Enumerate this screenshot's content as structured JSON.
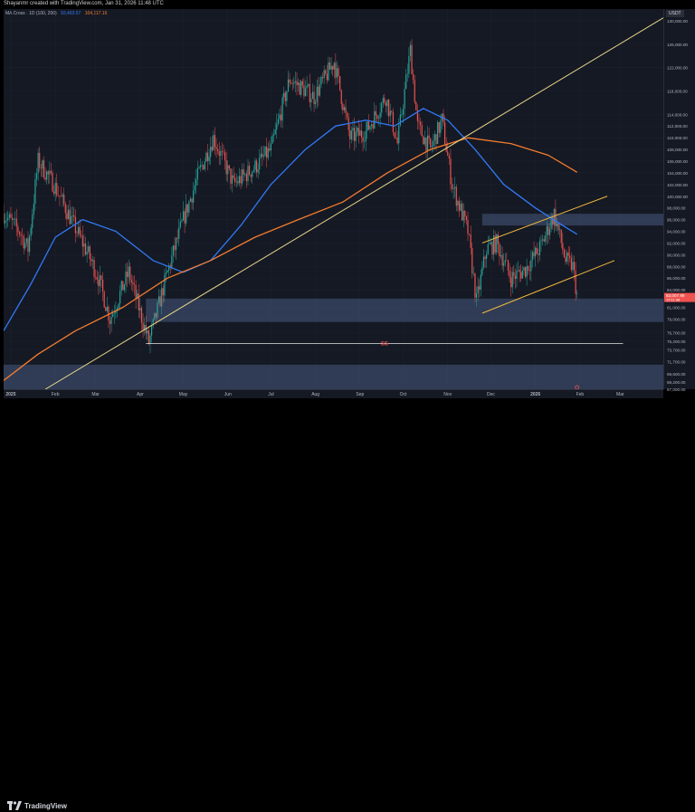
{
  "header": {
    "credit": "Shayanmr created with TradingView.com, Jan 31, 2026 11:48 UTC"
  },
  "indicator": {
    "name": "MA Cross · 1D (100, 200)",
    "value_fast": "93,493.57",
    "value_slow": "104,117.16"
  },
  "currency_label": "USDT",
  "footer": {
    "logo_text": "TradingView"
  },
  "colors": {
    "background": "#151924",
    "ma_fast": "#3179f5",
    "ma_slow": "#f57c2e",
    "trendline": "#e8d789",
    "channel": "#f2b93b",
    "zone": "#47597d",
    "candle_up": "#26a69a",
    "candle_down": "#ef5350",
    "price_label": "#ef5350"
  },
  "chart_data": {
    "type": "candlestick",
    "symbol_quote": "USDT",
    "ylim": [
      67000,
      132000
    ],
    "y_ticks": [
      {
        "value": 130000,
        "label": "130,000.00"
      },
      {
        "value": 126000,
        "label": "126,000.00"
      },
      {
        "value": 122000,
        "label": "122,000.00"
      },
      {
        "value": 118000,
        "label": "118,000.00"
      },
      {
        "value": 114000,
        "label": "114,000.00"
      },
      {
        "value": 112000,
        "label": "112,000.00"
      },
      {
        "value": 110000,
        "label": "110,000.00"
      },
      {
        "value": 108000,
        "label": "108,000.00"
      },
      {
        "value": 106000,
        "label": "106,000.00"
      },
      {
        "value": 104000,
        "label": "104,000.00"
      },
      {
        "value": 102000,
        "label": "102,000.00"
      },
      {
        "value": 100000,
        "label": "100,000.00"
      },
      {
        "value": 98000,
        "label": "98,000.00"
      },
      {
        "value": 96000,
        "label": "96,000.00"
      },
      {
        "value": 94000,
        "label": "94,000.00"
      },
      {
        "value": 92000,
        "label": "92,000.00"
      },
      {
        "value": 90000,
        "label": "90,000.00"
      },
      {
        "value": 88000,
        "label": "88,000.00"
      },
      {
        "value": 86000,
        "label": "86,000.00"
      },
      {
        "value": 84000,
        "label": "84,000.00"
      },
      {
        "value": 81000,
        "label": "81,000.00"
      },
      {
        "value": 79000,
        "label": "79,000.00"
      },
      {
        "value": 76700,
        "label": "76,700.00"
      },
      {
        "value": 75200,
        "label": "75,200.00"
      },
      {
        "value": 73700,
        "label": "73,700.00"
      },
      {
        "value": 71700,
        "label": "71,700.00"
      },
      {
        "value": 69600,
        "label": "69,600.00"
      },
      {
        "value": 68200,
        "label": "68,200.00"
      },
      {
        "value": 67000,
        "label": "67,000.00"
      }
    ],
    "x_labels": [
      {
        "label": "2025",
        "date": "2025-01-01"
      },
      {
        "label": "Feb",
        "date": "2025-02-01"
      },
      {
        "label": "Mar",
        "date": "2025-03-01"
      },
      {
        "label": "Apr",
        "date": "2025-04-01"
      },
      {
        "label": "May",
        "date": "2025-05-01"
      },
      {
        "label": "Jun",
        "date": "2025-06-01"
      },
      {
        "label": "Jul",
        "date": "2025-07-01"
      },
      {
        "label": "Aug",
        "date": "2025-08-01"
      },
      {
        "label": "Sep",
        "date": "2025-09-01"
      },
      {
        "label": "Oct",
        "date": "2025-10-01"
      },
      {
        "label": "Nov",
        "date": "2025-11-01"
      },
      {
        "label": "Dec",
        "date": "2025-12-01"
      },
      {
        "label": "2026",
        "date": "2026-01-01"
      },
      {
        "label": "Feb",
        "date": "2026-02-01"
      },
      {
        "label": "Mar",
        "date": "2026-03-01"
      }
    ],
    "xlim": [
      "2024-12-27",
      "2026-03-31"
    ],
    "price_path": [
      {
        "date": "2024-12-27",
        "price": 97000
      },
      {
        "date": "2025-01-07",
        "price": 94000
      },
      {
        "date": "2025-01-13",
        "price": 91000
      },
      {
        "date": "2025-01-20",
        "price": 106000
      },
      {
        "date": "2025-01-31",
        "price": 102000
      },
      {
        "date": "2025-02-10",
        "price": 97000
      },
      {
        "date": "2025-02-24",
        "price": 90000
      },
      {
        "date": "2025-03-03",
        "price": 86000
      },
      {
        "date": "2025-03-11",
        "price": 79000
      },
      {
        "date": "2025-03-24",
        "price": 87000
      },
      {
        "date": "2025-04-07",
        "price": 75000
      },
      {
        "date": "2025-04-20",
        "price": 87000
      },
      {
        "date": "2025-05-01",
        "price": 96000
      },
      {
        "date": "2025-05-12",
        "price": 104000
      },
      {
        "date": "2025-05-22",
        "price": 110000
      },
      {
        "date": "2025-06-05",
        "price": 102000
      },
      {
        "date": "2025-06-20",
        "price": 105000
      },
      {
        "date": "2025-07-01",
        "price": 108000
      },
      {
        "date": "2025-07-14",
        "price": 120000
      },
      {
        "date": "2025-07-31",
        "price": 117000
      },
      {
        "date": "2025-08-14",
        "price": 123000
      },
      {
        "date": "2025-08-25",
        "price": 110000
      },
      {
        "date": "2025-09-05",
        "price": 111000
      },
      {
        "date": "2025-09-19",
        "price": 117000
      },
      {
        "date": "2025-09-27",
        "price": 109000
      },
      {
        "date": "2025-10-06",
        "price": 125000
      },
      {
        "date": "2025-10-11",
        "price": 112000
      },
      {
        "date": "2025-10-20",
        "price": 108000
      },
      {
        "date": "2025-10-28",
        "price": 113000
      },
      {
        "date": "2025-11-04",
        "price": 102000
      },
      {
        "date": "2025-11-15",
        "price": 94000
      },
      {
        "date": "2025-11-21",
        "price": 82000
      },
      {
        "date": "2025-11-28",
        "price": 91000
      },
      {
        "date": "2025-12-05",
        "price": 92000
      },
      {
        "date": "2025-12-15",
        "price": 86000
      },
      {
        "date": "2025-12-25",
        "price": 87500
      },
      {
        "date": "2026-01-05",
        "price": 91500
      },
      {
        "date": "2026-01-14",
        "price": 97000
      },
      {
        "date": "2026-01-22",
        "price": 89000
      },
      {
        "date": "2026-01-27",
        "price": 88000
      },
      {
        "date": "2026-01-30",
        "price": 83000
      }
    ],
    "series": [
      {
        "name": "MA 100",
        "points": [
          {
            "date": "2024-12-27",
            "value": 77000
          },
          {
            "date": "2025-01-15",
            "value": 85000
          },
          {
            "date": "2025-02-01",
            "value": 93000
          },
          {
            "date": "2025-02-20",
            "value": 96000
          },
          {
            "date": "2025-03-15",
            "value": 94000
          },
          {
            "date": "2025-04-10",
            "value": 89000
          },
          {
            "date": "2025-05-01",
            "value": 87000
          },
          {
            "date": "2025-05-20",
            "value": 89000
          },
          {
            "date": "2025-06-10",
            "value": 95000
          },
          {
            "date": "2025-07-01",
            "value": 102000
          },
          {
            "date": "2025-07-25",
            "value": 108000
          },
          {
            "date": "2025-08-15",
            "value": 112000
          },
          {
            "date": "2025-09-05",
            "value": 113000
          },
          {
            "date": "2025-09-25",
            "value": 112000
          },
          {
            "date": "2025-10-15",
            "value": 115000
          },
          {
            "date": "2025-11-01",
            "value": 113000
          },
          {
            "date": "2025-11-20",
            "value": 108000
          },
          {
            "date": "2025-12-10",
            "value": 102000
          },
          {
            "date": "2026-01-01",
            "value": 98000
          },
          {
            "date": "2026-01-20",
            "value": 95000
          },
          {
            "date": "2026-01-30",
            "value": 93500
          }
        ]
      },
      {
        "name": "MA 200",
        "points": [
          {
            "date": "2024-12-27",
            "value": 68500
          },
          {
            "date": "2025-01-20",
            "value": 73000
          },
          {
            "date": "2025-02-15",
            "value": 77000
          },
          {
            "date": "2025-03-20",
            "value": 81000
          },
          {
            "date": "2025-04-20",
            "value": 86000
          },
          {
            "date": "2025-05-20",
            "value": 89000
          },
          {
            "date": "2025-06-20",
            "value": 93000
          },
          {
            "date": "2025-07-20",
            "value": 96000
          },
          {
            "date": "2025-08-20",
            "value": 99000
          },
          {
            "date": "2025-09-20",
            "value": 104000
          },
          {
            "date": "2025-10-20",
            "value": 108000
          },
          {
            "date": "2025-11-15",
            "value": 110000
          },
          {
            "date": "2025-12-15",
            "value": 109000
          },
          {
            "date": "2026-01-10",
            "value": 107000
          },
          {
            "date": "2026-01-30",
            "value": 104100
          }
        ]
      }
    ],
    "annotations": {
      "zones": [
        {
          "from": 95000,
          "to": 97000,
          "start": "2025-11-25",
          "end": "2026-03-31"
        },
        {
          "from": 78500,
          "to": 82500,
          "start": "2025-04-05",
          "end": "2026-03-31"
        },
        {
          "from": 67000,
          "to": 71200,
          "start": "2024-12-27",
          "end": "2026-03-31"
        }
      ],
      "trendline": {
        "start": {
          "date": "2025-01-25",
          "value": 67000
        },
        "end": {
          "date": "2026-03-31",
          "value": 130500
        }
      },
      "channel_upper": {
        "start": {
          "date": "2025-11-25",
          "value": 92000
        },
        "end": {
          "date": "2026-02-20",
          "value": 100000
        }
      },
      "channel_lower": {
        "start": {
          "date": "2025-11-25",
          "value": 80000
        },
        "end": {
          "date": "2026-02-25",
          "value": 89000
        }
      },
      "ss_level": {
        "value": 74800,
        "start": "2025-04-05",
        "end": "2026-03-03",
        "label": "SS"
      },
      "current_price": {
        "value": 83000,
        "label": "83,007.99",
        "countdown": "12:11:38"
      },
      "target_marker": {
        "date": "2026-01-30",
        "value": 67000
      }
    }
  }
}
